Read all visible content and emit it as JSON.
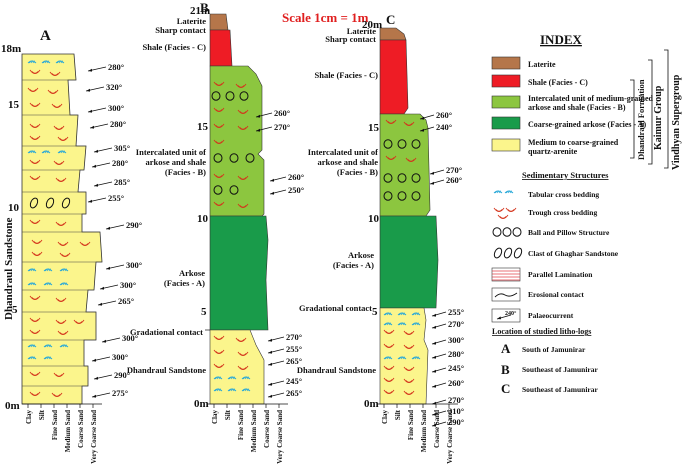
{
  "scale": "Scale 1cm = 1m",
  "colors": {
    "laterite": "#b5764a",
    "shale": "#ee1c25",
    "intercalated": "#8cc63f",
    "arkose": "#199b4a",
    "sandstone": "#fbf58c",
    "scale_text": "#e02020"
  },
  "logs": {
    "A": {
      "title": "A",
      "top_label": "18m",
      "ticks": [
        "15",
        "10",
        "5",
        "0m"
      ],
      "unit_label": "Dhandraul Sandstone",
      "paleocurrents": [
        "280°",
        "320°",
        "300°",
        "280°",
        "305°",
        "280°",
        "285°",
        "255°",
        "290°",
        "300°",
        "300°",
        "265°",
        "300°",
        "300°",
        "290°",
        "275°"
      ],
      "grain_labels": [
        "Clay",
        "Silt",
        "Fine Sand",
        "Medium Sand",
        "Coarse Sand",
        "Very Coarse Sand"
      ]
    },
    "B": {
      "title": "B",
      "top_label": "21m",
      "ticks": [
        "15",
        "10",
        "5",
        "0m"
      ],
      "unit_labels": {
        "laterite": "Laterite",
        "sharp_contact": "Sharp contact",
        "shale": "Shale (Facies - C)",
        "intercalated_1": "Intercalated unit of",
        "intercalated_2": "arkose and shale",
        "intercalated_3": "(Facies - B)",
        "arkose_1": "Arkose",
        "arkose_2": "(Facies - A)",
        "gradational": "Gradational contact",
        "sandstone": "Dhandraul Sandstone"
      },
      "paleocurrents": [
        "260°",
        "270°",
        "260°",
        "250°",
        "270°",
        "255°",
        "265°",
        "245°",
        "265°"
      ],
      "grain_labels": [
        "Clay",
        "Silt",
        "Fine Sand",
        "Medium Sand",
        "Coarse Sand",
        "Very Coarse Sand"
      ]
    },
    "C": {
      "title": "C",
      "top_label": "20m",
      "ticks": [
        "15",
        "10",
        "5",
        "0m"
      ],
      "unit_labels": {
        "laterite": "Laterite",
        "sharp_contact": "Sharp contact",
        "shale": "Shale (Facies - C)",
        "intercalated_1": "Intercalated unit of",
        "intercalated_2": "arkose and shale",
        "intercalated_3": "(Facies - B)",
        "arkose_1": "Arkose",
        "arkose_2": "(Facies - A)",
        "gradational": "Gradational contact",
        "sandstone": "Dhandraul Sandstone"
      },
      "paleocurrents": [
        "260°",
        "240°",
        "270°",
        "260°",
        "255°",
        "270°",
        "300°",
        "280°",
        "245°",
        "260°",
        "270°",
        "310°",
        "290°"
      ],
      "grain_labels": [
        "Clay",
        "Silt",
        "Fine Sand",
        "Medium Sand",
        "Coarse Sand",
        "Very Coarse Sand"
      ]
    }
  },
  "index": {
    "title": "INDEX",
    "items": [
      {
        "label": "Laterite"
      },
      {
        "label": "Shale (Facies - C)"
      },
      {
        "label": "Intercalated unit of medium-grained",
        "label2": "arkose and shale (Facies - B)"
      },
      {
        "label": "Coarse-grained arkose (Facies - A)"
      },
      {
        "label": "Medium to coarse-grained",
        "label2": "quartz-arenite"
      }
    ],
    "formation": "Dhandraul Formation",
    "group": "Kaimur Group",
    "supergroup": "Vindhyan Supergroup",
    "structures_title": "Sedimentary Structures",
    "structures": [
      "Tabular cross bedding",
      "Trough cross bedding",
      "Ball and Pillow Structure",
      "Clast of Ghaghar Sandstone",
      "Parallel Lamination",
      "Erosional contact",
      "Palaeocurrent"
    ],
    "palaeo_sample": "240°",
    "locations_title": "Location of studied litho-logs",
    "locations": [
      {
        "letter": "A",
        "text": "South of Jamunirar"
      },
      {
        "letter": "B",
        "text": "Southeast of Jamunirar"
      },
      {
        "letter": "C",
        "text": "Southeast of Jamunirar"
      }
    ]
  }
}
